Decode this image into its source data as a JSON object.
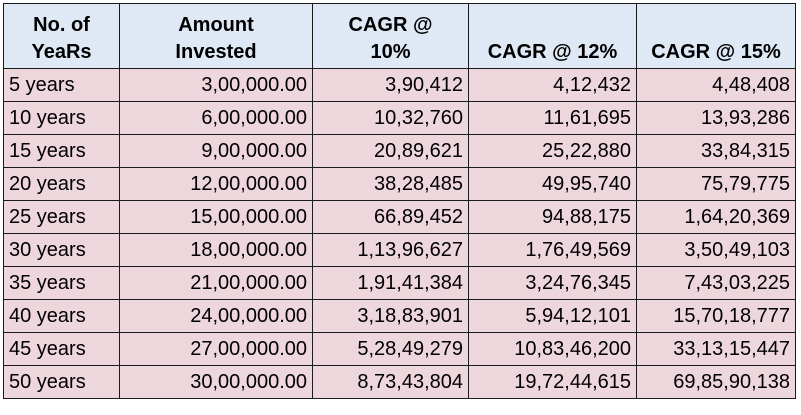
{
  "table": {
    "headers": [
      [
        "No. of",
        "YeaRs"
      ],
      [
        "Amount",
        "Invested"
      ],
      [
        "CAGR @",
        "10%"
      ],
      [
        "",
        "CAGR @ 12%"
      ],
      [
        "",
        "CAGR @ 15%"
      ]
    ],
    "rows": [
      [
        "5 years",
        "3,00,000.00",
        "3,90,412",
        "4,12,432",
        "4,48,408"
      ],
      [
        "10 years",
        "6,00,000.00",
        "10,32,760",
        "11,61,695",
        "13,93,286"
      ],
      [
        "15 years",
        "9,00,000.00",
        "20,89,621",
        "25,22,880",
        "33,84,315"
      ],
      [
        "20 years",
        "12,00,000.00",
        "38,28,485",
        "49,95,740",
        "75,79,775"
      ],
      [
        "25 years",
        "15,00,000.00",
        "66,89,452",
        "94,88,175",
        "1,64,20,369"
      ],
      [
        "30 years",
        "18,00,000.00",
        "1,13,96,627",
        "1,76,49,569",
        "3,50,49,103"
      ],
      [
        "35 years",
        "21,00,000.00",
        "1,91,41,384",
        "3,24,76,345",
        "7,43,03,225"
      ],
      [
        "40 years",
        "24,00,000.00",
        "3,18,83,901",
        "5,94,12,101",
        "15,70,18,777"
      ],
      [
        "45 years",
        "27,00,000.00",
        "5,28,49,279",
        "10,83,46,200",
        "33,13,15,447"
      ],
      [
        "50 years",
        "30,00,000.00",
        "8,73,43,804",
        "19,72,44,615",
        "69,85,90,138"
      ]
    ]
  },
  "colors": {
    "header_bg": "#dfe8f5",
    "row_bg": "#eed6dd",
    "border": "#1a1a1a"
  }
}
